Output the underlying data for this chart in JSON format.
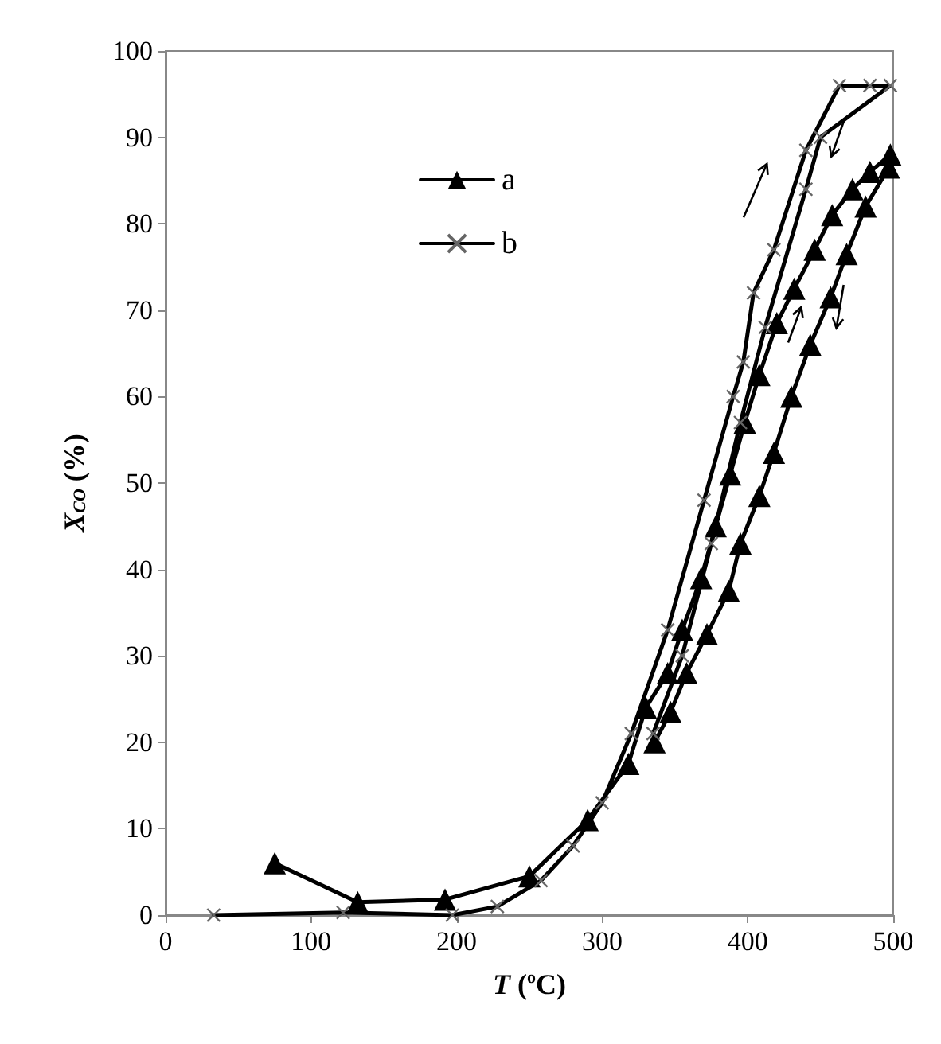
{
  "chart_data": {
    "type": "line",
    "xlabel": "T ($^{o}$C)",
    "ylabel": "X$_{CO}$ (%)",
    "xlim": [
      0,
      500
    ],
    "xticks": [
      0,
      100,
      200,
      300,
      400,
      500
    ],
    "ylim": [
      0,
      100
    ],
    "yticks": [
      0,
      10,
      20,
      30,
      40,
      50,
      60,
      70,
      80,
      90,
      100
    ],
    "grid": false,
    "legend": "top left",
    "line_style": "solid",
    "series": [
      {
        "name": "a",
        "color": "#000000",
        "marker": "triangle",
        "x": [
          75,
          132,
          192,
          250,
          290,
          318,
          330,
          345,
          355,
          368,
          378,
          388,
          398,
          408,
          420,
          432,
          446,
          458,
          472,
          484,
          498,
          497,
          481,
          468,
          457,
          443,
          430,
          418,
          408,
          395,
          387,
          372,
          358,
          347,
          336
        ],
        "values": [
          6,
          1.5,
          1.8,
          4.5,
          11,
          17.5,
          24,
          28,
          33,
          39,
          45,
          51,
          57,
          62.5,
          68.5,
          72.5,
          77,
          81,
          84,
          86,
          88,
          86.5,
          82,
          76.5,
          71.5,
          66,
          60,
          53.5,
          48.5,
          43,
          37.5,
          32.5,
          28,
          23.5,
          20
        ]
      },
      {
        "name": "b",
        "color": "#000000",
        "marker": "cross",
        "x": [
          33,
          122,
          197,
          228,
          258,
          280,
          300,
          320,
          345,
          370,
          390,
          397,
          404,
          418,
          440,
          463,
          484,
          498,
          450,
          440,
          412,
          395,
          375,
          355,
          335
        ],
        "values": [
          0,
          0.3,
          0,
          1,
          4,
          8,
          13,
          21,
          33,
          48,
          60,
          64,
          72,
          77,
          88.5,
          96,
          96,
          96,
          90,
          84,
          68,
          57,
          43,
          30,
          21
        ]
      }
    ]
  }
}
